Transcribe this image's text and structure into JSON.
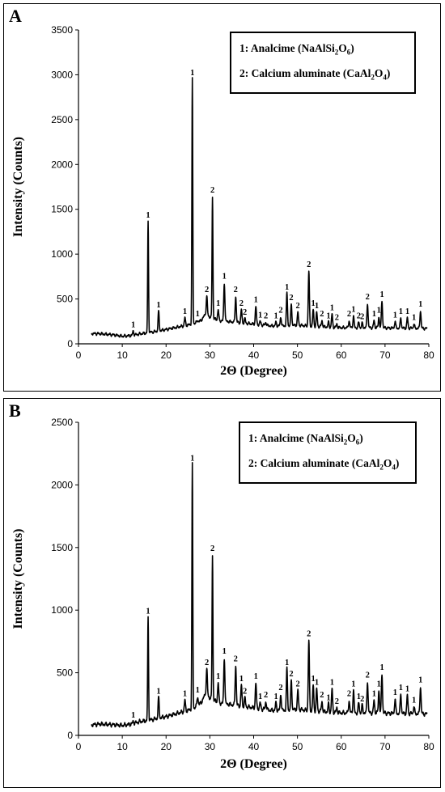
{
  "legend": {
    "item1_prefix": "1: Analcime (NaAlSi",
    "item1_sub1": "2",
    "item1_mid": "O",
    "item1_sub2": "6",
    "item1_suffix": ")",
    "item2_prefix": "2: Calcium aluminate (CaAl",
    "item2_sub1": "2",
    "item2_mid": "O",
    "item2_sub2": "4",
    "item2_suffix": ")"
  },
  "colors": {
    "line": "#000000",
    "frame": "#000000",
    "background": "#ffffff"
  },
  "chart_data": [
    {
      "panel": "A",
      "type": "line",
      "xlabel": "2Θ (Degree)",
      "ylabel": "Intensity (Counts)",
      "xlim": [
        0,
        80
      ],
      "ylim": [
        0,
        3500
      ],
      "xticks": [
        0,
        10,
        20,
        30,
        40,
        50,
        60,
        70,
        80
      ],
      "yticks": [
        0,
        500,
        1000,
        1500,
        2000,
        2500,
        3000,
        3500
      ],
      "legend_position": "top-right",
      "baseline": [
        [
          3,
          115
        ],
        [
          5,
          112
        ],
        [
          8,
          100
        ],
        [
          10,
          85
        ],
        [
          12,
          92
        ],
        [
          14,
          110
        ],
        [
          16,
          125
        ],
        [
          18,
          140
        ],
        [
          20,
          160
        ],
        [
          22,
          180
        ],
        [
          24,
          200
        ],
        [
          26,
          220
        ],
        [
          28,
          260
        ],
        [
          29,
          330
        ],
        [
          30,
          300
        ],
        [
          32,
          260
        ],
        [
          34,
          250
        ],
        [
          36,
          240
        ],
        [
          38,
          230
        ],
        [
          40,
          220
        ],
        [
          44,
          200
        ],
        [
          48,
          200
        ],
        [
          50,
          210
        ],
        [
          52,
          200
        ],
        [
          56,
          190
        ],
        [
          60,
          180
        ],
        [
          64,
          180
        ],
        [
          68,
          180
        ],
        [
          72,
          175
        ],
        [
          76,
          175
        ],
        [
          80,
          170
        ]
      ],
      "peaks": [
        {
          "x": 12.5,
          "y": 140,
          "label": "1"
        },
        {
          "x": 15.9,
          "y": 1360,
          "label": "1"
        },
        {
          "x": 18.3,
          "y": 360,
          "label": "1"
        },
        {
          "x": 24.3,
          "y": 290,
          "label": "1"
        },
        {
          "x": 26.0,
          "y": 2950,
          "label": "1"
        },
        {
          "x": 27.2,
          "y": 260,
          "label": "1"
        },
        {
          "x": 29.3,
          "y": 530,
          "label": "2"
        },
        {
          "x": 30.6,
          "y": 1640,
          "label": "2"
        },
        {
          "x": 31.9,
          "y": 380,
          "label": "1"
        },
        {
          "x": 33.3,
          "y": 680,
          "label": "1"
        },
        {
          "x": 35.9,
          "y": 530,
          "label": "2"
        },
        {
          "x": 37.2,
          "y": 380,
          "label": "2"
        },
        {
          "x": 38.0,
          "y": 280,
          "label": "2"
        },
        {
          "x": 40.5,
          "y": 420,
          "label": "1"
        },
        {
          "x": 41.5,
          "y": 250,
          "label": "1"
        },
        {
          "x": 42.8,
          "y": 240,
          "label": "2"
        },
        {
          "x": 45.1,
          "y": 240,
          "label": "1"
        },
        {
          "x": 46.2,
          "y": 300,
          "label": "2"
        },
        {
          "x": 47.6,
          "y": 560,
          "label": "1"
        },
        {
          "x": 48.6,
          "y": 440,
          "label": "2"
        },
        {
          "x": 50.1,
          "y": 350,
          "label": "2"
        },
        {
          "x": 52.6,
          "y": 810,
          "label": "2"
        },
        {
          "x": 53.6,
          "y": 380,
          "label": "1"
        },
        {
          "x": 54.4,
          "y": 350,
          "label": "1"
        },
        {
          "x": 55.6,
          "y": 260,
          "label": "2"
        },
        {
          "x": 57.1,
          "y": 240,
          "label": "1"
        },
        {
          "x": 57.9,
          "y": 330,
          "label": "1"
        },
        {
          "x": 59.0,
          "y": 220,
          "label": "2"
        },
        {
          "x": 61.8,
          "y": 260,
          "label": "2"
        },
        {
          "x": 62.8,
          "y": 310,
          "label": "1"
        },
        {
          "x": 64.0,
          "y": 240,
          "label": "2"
        },
        {
          "x": 64.8,
          "y": 230,
          "label": "2"
        },
        {
          "x": 66.0,
          "y": 450,
          "label": "2"
        },
        {
          "x": 67.5,
          "y": 260,
          "label": "1"
        },
        {
          "x": 68.6,
          "y": 300,
          "label": "1"
        },
        {
          "x": 69.3,
          "y": 480,
          "label": "1"
        },
        {
          "x": 72.3,
          "y": 250,
          "label": "1"
        },
        {
          "x": 73.6,
          "y": 290,
          "label": "1"
        },
        {
          "x": 75.1,
          "y": 290,
          "label": "1"
        },
        {
          "x": 76.6,
          "y": 220,
          "label": "1"
        },
        {
          "x": 78.1,
          "y": 370,
          "label": "1"
        }
      ]
    },
    {
      "panel": "B",
      "type": "line",
      "xlabel": "2Θ (Degree)",
      "ylabel": "Intensity (Counts)",
      "xlim": [
        0,
        80
      ],
      "ylim": [
        0,
        2500
      ],
      "xticks": [
        0,
        10,
        20,
        30,
        40,
        50,
        60,
        70,
        80
      ],
      "yticks": [
        0,
        500,
        1000,
        1500,
        2000,
        2500
      ],
      "legend_position": "top-right",
      "baseline": [
        [
          3,
          85
        ],
        [
          5,
          90
        ],
        [
          8,
          85
        ],
        [
          10,
          80
        ],
        [
          12,
          90
        ],
        [
          14,
          110
        ],
        [
          16,
          120
        ],
        [
          18,
          135
        ],
        [
          20,
          150
        ],
        [
          22,
          170
        ],
        [
          24,
          190
        ],
        [
          26,
          210
        ],
        [
          28,
          260
        ],
        [
          29,
          330
        ],
        [
          30,
          300
        ],
        [
          32,
          260
        ],
        [
          34,
          250
        ],
        [
          36,
          240
        ],
        [
          38,
          230
        ],
        [
          40,
          220
        ],
        [
          44,
          200
        ],
        [
          48,
          200
        ],
        [
          50,
          210
        ],
        [
          52,
          200
        ],
        [
          56,
          190
        ],
        [
          60,
          180
        ],
        [
          64,
          180
        ],
        [
          68,
          180
        ],
        [
          72,
          175
        ],
        [
          76,
          175
        ],
        [
          80,
          170
        ]
      ],
      "peaks": [
        {
          "x": 12.5,
          "y": 110,
          "label": "1"
        },
        {
          "x": 15.9,
          "y": 940,
          "label": "1"
        },
        {
          "x": 18.3,
          "y": 300,
          "label": "1"
        },
        {
          "x": 24.3,
          "y": 280,
          "label": "1"
        },
        {
          "x": 26.0,
          "y": 2160,
          "label": "1"
        },
        {
          "x": 27.2,
          "y": 310,
          "label": "1"
        },
        {
          "x": 29.3,
          "y": 530,
          "label": "2"
        },
        {
          "x": 30.6,
          "y": 1440,
          "label": "2"
        },
        {
          "x": 31.9,
          "y": 420,
          "label": "1"
        },
        {
          "x": 33.3,
          "y": 620,
          "label": "1"
        },
        {
          "x": 35.9,
          "y": 560,
          "label": "2"
        },
        {
          "x": 37.2,
          "y": 400,
          "label": "1"
        },
        {
          "x": 38.0,
          "y": 300,
          "label": "2"
        },
        {
          "x": 40.5,
          "y": 420,
          "label": "1"
        },
        {
          "x": 41.5,
          "y": 260,
          "label": "1"
        },
        {
          "x": 42.8,
          "y": 270,
          "label": "2"
        },
        {
          "x": 45.1,
          "y": 260,
          "label": "1"
        },
        {
          "x": 46.2,
          "y": 330,
          "label": "2"
        },
        {
          "x": 47.6,
          "y": 530,
          "label": "1"
        },
        {
          "x": 48.6,
          "y": 440,
          "label": "2"
        },
        {
          "x": 50.1,
          "y": 360,
          "label": "2"
        },
        {
          "x": 52.6,
          "y": 760,
          "label": "2"
        },
        {
          "x": 53.6,
          "y": 400,
          "label": "1"
        },
        {
          "x": 54.4,
          "y": 370,
          "label": "1"
        },
        {
          "x": 55.6,
          "y": 270,
          "label": "2"
        },
        {
          "x": 57.1,
          "y": 250,
          "label": "1"
        },
        {
          "x": 57.9,
          "y": 370,
          "label": "1"
        },
        {
          "x": 59.0,
          "y": 220,
          "label": "2"
        },
        {
          "x": 61.8,
          "y": 280,
          "label": "2"
        },
        {
          "x": 62.8,
          "y": 360,
          "label": "1"
        },
        {
          "x": 64.0,
          "y": 260,
          "label": "1"
        },
        {
          "x": 64.8,
          "y": 240,
          "label": "2"
        },
        {
          "x": 66.0,
          "y": 430,
          "label": "2"
        },
        {
          "x": 67.5,
          "y": 280,
          "label": "1"
        },
        {
          "x": 68.6,
          "y": 360,
          "label": "1"
        },
        {
          "x": 69.3,
          "y": 490,
          "label": "1"
        },
        {
          "x": 72.3,
          "y": 290,
          "label": "1"
        },
        {
          "x": 73.6,
          "y": 330,
          "label": "1"
        },
        {
          "x": 75.1,
          "y": 320,
          "label": "1"
        },
        {
          "x": 76.6,
          "y": 230,
          "label": "1"
        },
        {
          "x": 78.1,
          "y": 390,
          "label": "1"
        }
      ]
    }
  ],
  "panels": [
    {
      "letter": "A"
    },
    {
      "letter": "B"
    }
  ]
}
